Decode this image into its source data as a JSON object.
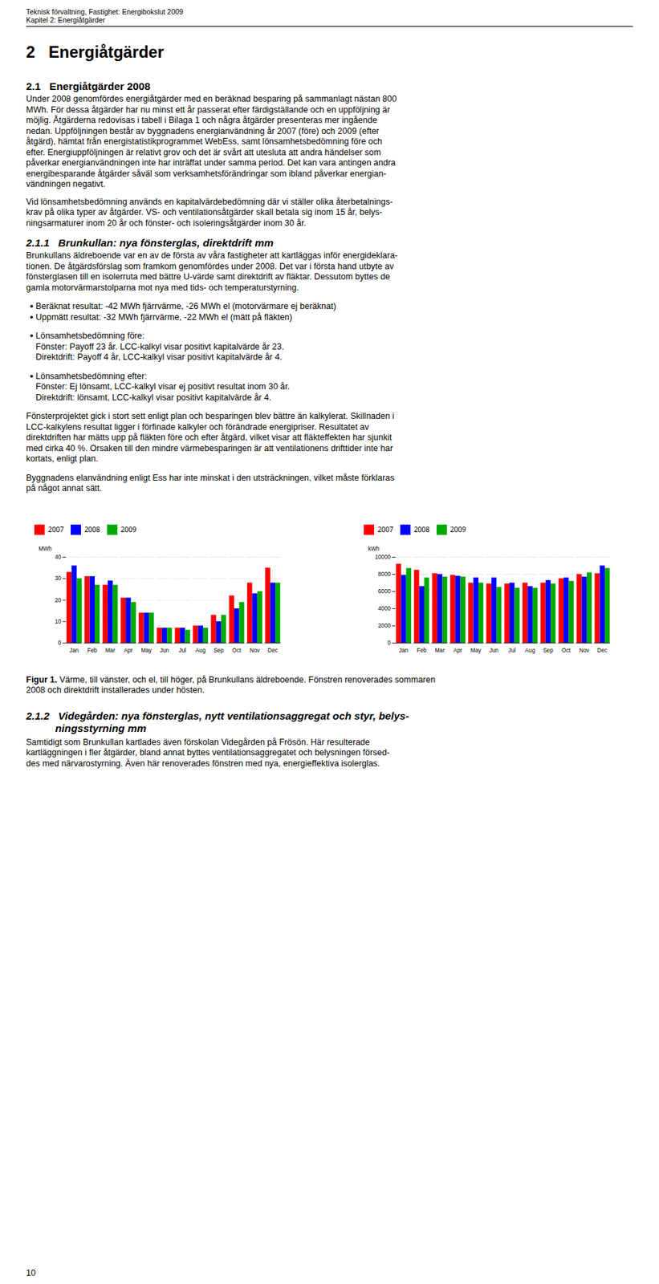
{
  "chart_data": [
    {
      "type": "bar",
      "categories": [
        "Jan",
        "Feb",
        "Mar",
        "Apr",
        "May",
        "Jun",
        "Jul",
        "Aug",
        "Sep",
        "Oct",
        "Nov",
        "Dec"
      ],
      "series": [
        {
          "name": "2007",
          "color": "#FF0000",
          "values": [
            33,
            31,
            27,
            21,
            14,
            7,
            7,
            8,
            13,
            22,
            28,
            35
          ]
        },
        {
          "name": "2008",
          "color": "#0000FF",
          "values": [
            36,
            31,
            29,
            21,
            14,
            7,
            7,
            8,
            10,
            16,
            23,
            28
          ]
        },
        {
          "name": "2009",
          "color": "#00AA00",
          "values": [
            30,
            27,
            27,
            19,
            14,
            7,
            6,
            7,
            13,
            19,
            24,
            28
          ]
        }
      ],
      "ylabel": "MWh",
      "ylim": [
        0,
        40
      ],
      "yticks": [
        0,
        10,
        20,
        30,
        40
      ],
      "grid": true,
      "legend": "top"
    },
    {
      "type": "bar",
      "categories": [
        "Jan",
        "Feb",
        "Mar",
        "Apr",
        "May",
        "Jun",
        "Jul",
        "Aug",
        "Sep",
        "Oct",
        "Nov",
        "Dec"
      ],
      "series": [
        {
          "name": "2007",
          "color": "#FF0000",
          "values": [
            9200,
            8500,
            8100,
            7900,
            7000,
            6900,
            6900,
            7000,
            7000,
            7500,
            8000,
            8100
          ]
        },
        {
          "name": "2008",
          "color": "#0000FF",
          "values": [
            7900,
            6600,
            8000,
            7800,
            7600,
            7600,
            7000,
            6600,
            7300,
            7600,
            7700,
            9000
          ]
        },
        {
          "name": "2009",
          "color": "#00AA00",
          "values": [
            8700,
            7600,
            7700,
            7700,
            7000,
            6500,
            6400,
            6400,
            6900,
            7200,
            8200,
            8700
          ]
        }
      ],
      "ylabel": "kWh",
      "ylim": [
        0,
        10000
      ],
      "yticks": [
        0,
        2000,
        4000,
        6000,
        8000,
        10000
      ],
      "grid": true,
      "legend": "top"
    }
  ],
  "annotations": [
    [
      "Teknisk förvaltning, Fastighet: Energibokslut 2009",
      "Kapitel 2: Energiåtgärder"
    ],
    [
      "2   Energiåtgärder"
    ],
    [
      "2.1   Energiåtgärder 2008"
    ],
    [
      "Under 2008 genomfördes energiåtgärder med en beräknad besparing på sammanlagt nästan 800",
      "MWh. För dessa åtgärder har nu minst ett år passerat efter färdigställande och en uppföljning är",
      "möjlig. Åtgärderna redovisas i tabell i Bilaga 1 och några åtgärder presenteras mer ingående",
      "nedan. Uppföljningen består av byggnadens energianvändning år 2007 (före) och 2009 (efter",
      "åtgärd), hämtat från energistatistikprogrammet WebEss, samt lönsamhetsbedömning före och",
      "efter. Energiuppföljningen är relativt grov och det är svårt att utesluta att andra händelser som",
      "påverkar energianvändningen inte har inträffat under samma period. Det kan vara antingen andra",
      "energibesparande åtgärder såväl som verksamhetsförändringar som ibland påverkar energian-",
      "vändningen negativt."
    ],
    [
      "Vid lönsamhetsbedömning används en kapitalvärdebedömning där vi ställer olika återbetalnings-",
      "krav på olika typer av åtgärder. VS- och ventilationsåtgärder skall betala sig inom 15 år, belys-",
      "ningsarmaturer inom 20 år och fönster- och isoleringsåtgärder inom 30 år."
    ],
    [
      "2.1.1   Brunkullan: nya fönsterglas, direktdrift mm"
    ],
    [
      "Brunkullans äldreboende var en av de första av våra fastigheter att kartläggas inför energideklara-",
      "tionen. De åtgärdsförslag som framkom genomfördes under 2008. Det var i första hand utbyte av",
      "fönsterglasen till en isolerruta med bättre U-värde samt direktdrift av fläktar. Dessutom byttes de",
      "gamla motorvärmarstolparna mot nya med tids- och temperaturstyrning."
    ],
    [
      "Beräknat resultat: -42 MWh fjärrvärme, -26 MWh el (motorvärmare ej beräknat)",
      "Uppmätt resultat: -32 MWh fjärrvärme, -22 MWh el (mätt på fläkten)"
    ],
    [
      "Lönsamhetsbedömning före:",
      "Fönster: Payoff 23 år. LCC-kalkyl visar positivt kapitalvärde år 23.",
      "Direktdrift: Payoff 4 år, LCC-kalkyl visar positivt kapitalvärde år 4."
    ],
    [
      "Lönsamhetsbedömning efter:",
      "Fönster: Ej lönsamt, LCC-kalkyl visar ej positivt resultat inom 30 år.",
      "Direktdrift: lönsamt, LCC-kalkyl visar positivt kapitalvärde år 4."
    ],
    [
      "Fönsterprojektet gick i stort sett enligt plan och besparingen blev bättre än kalkylerat. Skillnaden i",
      "LCC-kalkylens resultat ligger i förfinade kalkyler och förändrade energipriser. Resultatet av",
      "direktdriften har mätts upp på fläkten före och efter åtgärd, vilket visar att fläkteffekten har sjunkit",
      "med cirka 40 %. Orsaken till den mindre värmebesparingen är att ventilationens drifttider inte har",
      "kortats, enligt plan."
    ],
    [
      "Byggnadens elanvändning enligt Ess har inte minskat i den utsträckningen, vilket måste förklaras",
      "på något annat sätt."
    ],
    [
      "Figur 1.",
      " Värme, till vänster, och el, till höger, på Brunkullans äldreboende. Fönstren renoverades sommaren",
      "2008 och direktdrift installerades under hösten."
    ],
    [
      "2.1.2   Videgården: nya fönsterglas, nytt ventilationsaggregat och styr, belys-",
      "          ningsstyrning mm"
    ],
    [
      "Samtidigt som Brunkullan kartlades även förskolan Videgården på Frösön. Här resulterade",
      "kartläggningen i fler åtgärder, bland annat byttes ventilationsaggregatet och belysningen försed-",
      "des med närvarostyrning. Även här renoverades fönstren med nya, energieffektiva isolerglas."
    ],
    [
      "10"
    ]
  ]
}
